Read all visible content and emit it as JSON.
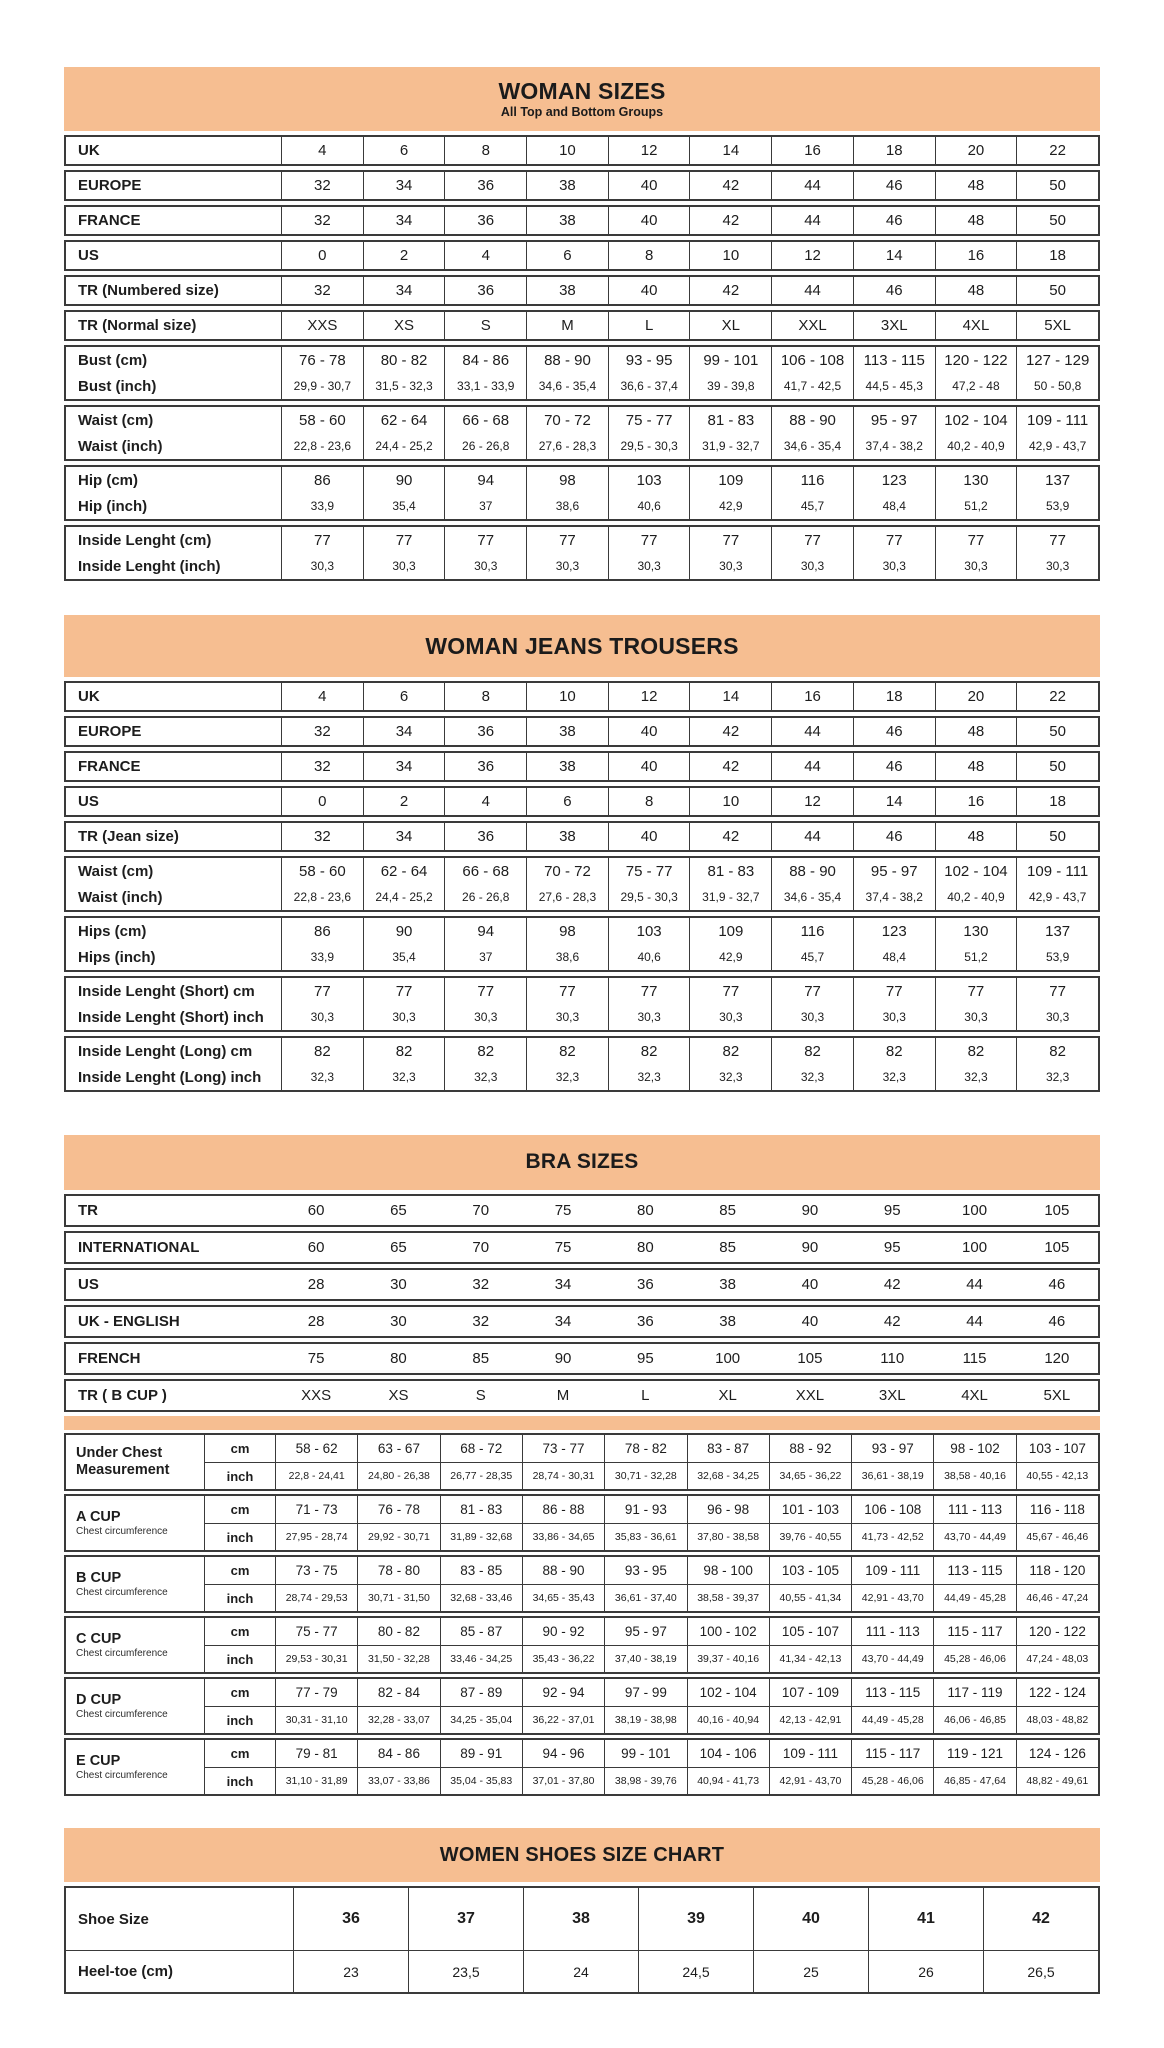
{
  "colors": {
    "accent": "#f6be91",
    "border": "#3a3a3a",
    "text": "#1d1d1d",
    "page_bg": "#ffffff"
  },
  "tables": [
    {
      "id": "woman-sizes",
      "title": "WOMAN SIZES",
      "subtitle": "All Top and Bottom Groups",
      "groups": [
        {
          "rows": [
            {
              "label": "UK",
              "values": [
                "4",
                "6",
                "8",
                "10",
                "12",
                "14",
                "16",
                "18",
                "20",
                "22"
              ]
            }
          ]
        },
        {
          "rows": [
            {
              "label": "EUROPE",
              "values": [
                "32",
                "34",
                "36",
                "38",
                "40",
                "42",
                "44",
                "46",
                "48",
                "50"
              ]
            }
          ]
        },
        {
          "rows": [
            {
              "label": "FRANCE",
              "values": [
                "32",
                "34",
                "36",
                "38",
                "40",
                "42",
                "44",
                "46",
                "48",
                "50"
              ]
            }
          ]
        },
        {
          "rows": [
            {
              "label": "US",
              "values": [
                "0",
                "2",
                "4",
                "6",
                "8",
                "10",
                "12",
                "14",
                "16",
                "18"
              ]
            }
          ]
        },
        {
          "rows": [
            {
              "label": "TR (Numbered size)",
              "values": [
                "32",
                "34",
                "36",
                "38",
                "40",
                "42",
                "44",
                "46",
                "48",
                "50"
              ]
            }
          ]
        },
        {
          "rows": [
            {
              "label": "TR (Normal size)",
              "values": [
                "XXS",
                "XS",
                "S",
                "M",
                "L",
                "XL",
                "XXL",
                "3XL",
                "4XL",
                "5XL"
              ]
            }
          ]
        },
        {
          "rows": [
            {
              "label": "Bust (cm)",
              "values": [
                "76 - 78",
                "80 - 82",
                "84 - 86",
                "88 - 90",
                "93 - 95",
                "99 - 101",
                "106 - 108",
                "113 - 115",
                "120 - 122",
                "127 - 129"
              ]
            },
            {
              "label": "Bust (inch)",
              "small": true,
              "values": [
                "29,9 - 30,7",
                "31,5 - 32,3",
                "33,1 - 33,9",
                "34,6 - 35,4",
                "36,6 - 37,4",
                "39 - 39,8",
                "41,7 - 42,5",
                "44,5 - 45,3",
                "47,2 - 48",
                "50 - 50,8"
              ]
            }
          ]
        },
        {
          "rows": [
            {
              "label": "Waist (cm)",
              "values": [
                "58 - 60",
                "62 - 64",
                "66 - 68",
                "70 - 72",
                "75 - 77",
                "81 - 83",
                "88 - 90",
                "95 - 97",
                "102 - 104",
                "109 - 111"
              ]
            },
            {
              "label": "Waist (inch)",
              "small": true,
              "values": [
                "22,8 - 23,6",
                "24,4 - 25,2",
                "26 - 26,8",
                "27,6 - 28,3",
                "29,5 - 30,3",
                "31,9 - 32,7",
                "34,6 - 35,4",
                "37,4 - 38,2",
                "40,2 - 40,9",
                "42,9 - 43,7"
              ]
            }
          ]
        },
        {
          "rows": [
            {
              "label": "Hip (cm)",
              "values": [
                "86",
                "90",
                "94",
                "98",
                "103",
                "109",
                "116",
                "123",
                "130",
                "137"
              ]
            },
            {
              "label": "Hip (inch)",
              "small": true,
              "values": [
                "33,9",
                "35,4",
                "37",
                "38,6",
                "40,6",
                "42,9",
                "45,7",
                "48,4",
                "51,2",
                "53,9"
              ]
            }
          ]
        },
        {
          "rows": [
            {
              "label": "Inside Lenght (cm)",
              "values": [
                "77",
                "77",
                "77",
                "77",
                "77",
                "77",
                "77",
                "77",
                "77",
                "77"
              ]
            },
            {
              "label": "Inside Lenght (inch)",
              "small": true,
              "values": [
                "30,3",
                "30,3",
                "30,3",
                "30,3",
                "30,3",
                "30,3",
                "30,3",
                "30,3",
                "30,3",
                "30,3"
              ]
            }
          ]
        }
      ]
    },
    {
      "id": "woman-jeans",
      "title": "WOMAN JEANS TROUSERS",
      "subtitle": "",
      "groups": [
        {
          "rows": [
            {
              "label": "UK",
              "values": [
                "4",
                "6",
                "8",
                "10",
                "12",
                "14",
                "16",
                "18",
                "20",
                "22"
              ]
            }
          ]
        },
        {
          "rows": [
            {
              "label": "EUROPE",
              "values": [
                "32",
                "34",
                "36",
                "38",
                "40",
                "42",
                "44",
                "46",
                "48",
                "50"
              ]
            }
          ]
        },
        {
          "rows": [
            {
              "label": "FRANCE",
              "values": [
                "32",
                "34",
                "36",
                "38",
                "40",
                "42",
                "44",
                "46",
                "48",
                "50"
              ]
            }
          ]
        },
        {
          "rows": [
            {
              "label": "US",
              "values": [
                "0",
                "2",
                "4",
                "6",
                "8",
                "10",
                "12",
                "14",
                "16",
                "18"
              ]
            }
          ]
        },
        {
          "rows": [
            {
              "label": "TR (Jean size)",
              "values": [
                "32",
                "34",
                "36",
                "38",
                "40",
                "42",
                "44",
                "46",
                "48",
                "50"
              ]
            }
          ]
        },
        {
          "rows": [
            {
              "label": "Waist (cm)",
              "values": [
                "58 - 60",
                "62 - 64",
                "66 - 68",
                "70 - 72",
                "75 - 77",
                "81 - 83",
                "88 - 90",
                "95 - 97",
                "102 - 104",
                "109 - 111"
              ]
            },
            {
              "label": "Waist (inch)",
              "small": true,
              "values": [
                "22,8 - 23,6",
                "24,4 - 25,2",
                "26 - 26,8",
                "27,6 - 28,3",
                "29,5 - 30,3",
                "31,9 - 32,7",
                "34,6 - 35,4",
                "37,4 - 38,2",
                "40,2 - 40,9",
                "42,9 - 43,7"
              ]
            }
          ]
        },
        {
          "rows": [
            {
              "label": "Hips (cm)",
              "values": [
                "86",
                "90",
                "94",
                "98",
                "103",
                "109",
                "116",
                "123",
                "130",
                "137"
              ]
            },
            {
              "label": "Hips (inch)",
              "small": true,
              "values": [
                "33,9",
                "35,4",
                "37",
                "38,6",
                "40,6",
                "42,9",
                "45,7",
                "48,4",
                "51,2",
                "53,9"
              ]
            }
          ]
        },
        {
          "rows": [
            {
              "label": "Inside Lenght (Short) cm",
              "values": [
                "77",
                "77",
                "77",
                "77",
                "77",
                "77",
                "77",
                "77",
                "77",
                "77"
              ]
            },
            {
              "label": "Inside Lenght (Short) inch",
              "small": true,
              "values": [
                "30,3",
                "30,3",
                "30,3",
                "30,3",
                "30,3",
                "30,3",
                "30,3",
                "30,3",
                "30,3",
                "30,3"
              ]
            }
          ]
        },
        {
          "rows": [
            {
              "label": "Inside Lenght (Long) cm",
              "values": [
                "82",
                "82",
                "82",
                "82",
                "82",
                "82",
                "82",
                "82",
                "82",
                "82"
              ]
            },
            {
              "label": "Inside Lenght (Long) inch",
              "small": true,
              "values": [
                "32,3",
                "32,3",
                "32,3",
                "32,3",
                "32,3",
                "32,3",
                "32,3",
                "32,3",
                "32,3",
                "32,3"
              ]
            }
          ]
        }
      ]
    },
    {
      "id": "bra-sizes",
      "title": "BRA SIZES",
      "subtitle": "",
      "flat_groups": [
        {
          "label": "TR",
          "values": [
            "60",
            "65",
            "70",
            "75",
            "80",
            "85",
            "90",
            "95",
            "100",
            "105"
          ]
        },
        {
          "label": "INTERNATIONAL",
          "values": [
            "60",
            "65",
            "70",
            "75",
            "80",
            "85",
            "90",
            "95",
            "100",
            "105"
          ]
        },
        {
          "label": "US",
          "values": [
            "28",
            "30",
            "32",
            "34",
            "36",
            "38",
            "40",
            "42",
            "44",
            "46"
          ]
        },
        {
          "label": "UK - ENGLISH",
          "values": [
            "28",
            "30",
            "32",
            "34",
            "36",
            "38",
            "40",
            "42",
            "44",
            "46"
          ]
        },
        {
          "label": "FRENCH",
          "values": [
            "75",
            "80",
            "85",
            "90",
            "95",
            "100",
            "105",
            "110",
            "115",
            "120"
          ]
        },
        {
          "label": "TR ( B CUP )",
          "values": [
            "XXS",
            "XS",
            "S",
            "M",
            "L",
            "XL",
            "XXL",
            "3XL",
            "4XL",
            "5XL"
          ]
        }
      ],
      "cups": [
        {
          "label": "Under Chest\nMeasurement",
          "sublabel": "",
          "cm": [
            "58 - 62",
            "63 - 67",
            "68 - 72",
            "73 - 77",
            "78 - 82",
            "83 - 87",
            "88 - 92",
            "93 - 97",
            "98 - 102",
            "103 - 107"
          ],
          "inch": [
            "22,8 - 24,41",
            "24,80 - 26,38",
            "26,77 - 28,35",
            "28,74 - 30,31",
            "30,71 - 32,28",
            "32,68 - 34,25",
            "34,65 - 36,22",
            "36,61 - 38,19",
            "38,58 - 40,16",
            "40,55 - 42,13"
          ]
        },
        {
          "label": "A CUP",
          "sublabel": "Chest circumference",
          "cm": [
            "71 - 73",
            "76 - 78",
            "81 - 83",
            "86 - 88",
            "91 - 93",
            "96 - 98",
            "101 - 103",
            "106 - 108",
            "111 - 113",
            "116 - 118"
          ],
          "inch": [
            "27,95 - 28,74",
            "29,92 - 30,71",
            "31,89 - 32,68",
            "33,86 - 34,65",
            "35,83 - 36,61",
            "37,80 - 38,58",
            "39,76 - 40,55",
            "41,73 - 42,52",
            "43,70 - 44,49",
            "45,67 - 46,46"
          ]
        },
        {
          "label": "B CUP",
          "sublabel": "Chest circumference",
          "cm": [
            "73 - 75",
            "78 - 80",
            "83 - 85",
            "88 - 90",
            "93 - 95",
            "98 - 100",
            "103 - 105",
            "109 - 111",
            "113 - 115",
            "118 - 120"
          ],
          "inch": [
            "28,74 - 29,53",
            "30,71 - 31,50",
            "32,68 - 33,46",
            "34,65 - 35,43",
            "36,61 - 37,40",
            "38,58 - 39,37",
            "40,55 - 41,34",
            "42,91 - 43,70",
            "44,49 - 45,28",
            "46,46 - 47,24"
          ]
        },
        {
          "label": "C CUP",
          "sublabel": "Chest circumference",
          "cm": [
            "75 - 77",
            "80 - 82",
            "85 - 87",
            "90 - 92",
            "95 - 97",
            "100 - 102",
            "105 - 107",
            "111 - 113",
            "115 - 117",
            "120 - 122"
          ],
          "inch": [
            "29,53 - 30,31",
            "31,50 - 32,28",
            "33,46 - 34,25",
            "35,43 - 36,22",
            "37,40 - 38,19",
            "39,37 - 40,16",
            "41,34 - 42,13",
            "43,70 - 44,49",
            "45,28 - 46,06",
            "47,24 - 48,03"
          ]
        },
        {
          "label": "D CUP",
          "sublabel": "Chest circumference",
          "cm": [
            "77 - 79",
            "82 - 84",
            "87 - 89",
            "92 - 94",
            "97 - 99",
            "102 - 104",
            "107 - 109",
            "113 - 115",
            "117 - 119",
            "122 - 124"
          ],
          "inch": [
            "30,31 - 31,10",
            "32,28 - 33,07",
            "34,25 - 35,04",
            "36,22 - 37,01",
            "38,19 - 38,98",
            "40,16 - 40,94",
            "42,13 - 42,91",
            "44,49 - 45,28",
            "46,06 - 46,85",
            "48,03 - 48,82"
          ]
        },
        {
          "label": "E CUP",
          "sublabel": "Chest circumference",
          "cm": [
            "79 - 81",
            "84 - 86",
            "89 - 91",
            "94 - 96",
            "99 - 101",
            "104 - 106",
            "109 - 111",
            "115 - 117",
            "119 - 121",
            "124 - 126"
          ],
          "inch": [
            "31,10 - 31,89",
            "33,07 - 33,86",
            "35,04 - 35,83",
            "37,01 - 37,80",
            "38,98 - 39,76",
            "40,94 - 41,73",
            "42,91 - 43,70",
            "45,28 - 46,06",
            "46,85 - 47,64",
            "48,82 - 49,61"
          ]
        }
      ],
      "units": {
        "cm": "cm",
        "inch": "inch"
      }
    },
    {
      "id": "women-shoes",
      "title": "WOMEN SHOES SIZE CHART",
      "subtitle": "",
      "shoe_rows": [
        {
          "label": "Shoe Size",
          "values": [
            "36",
            "37",
            "38",
            "39",
            "40",
            "41",
            "42"
          ]
        },
        {
          "label": "Heel-toe (cm)",
          "values": [
            "23",
            "23,5",
            "24",
            "24,5",
            "25",
            "26",
            "26,5"
          ]
        }
      ]
    }
  ]
}
